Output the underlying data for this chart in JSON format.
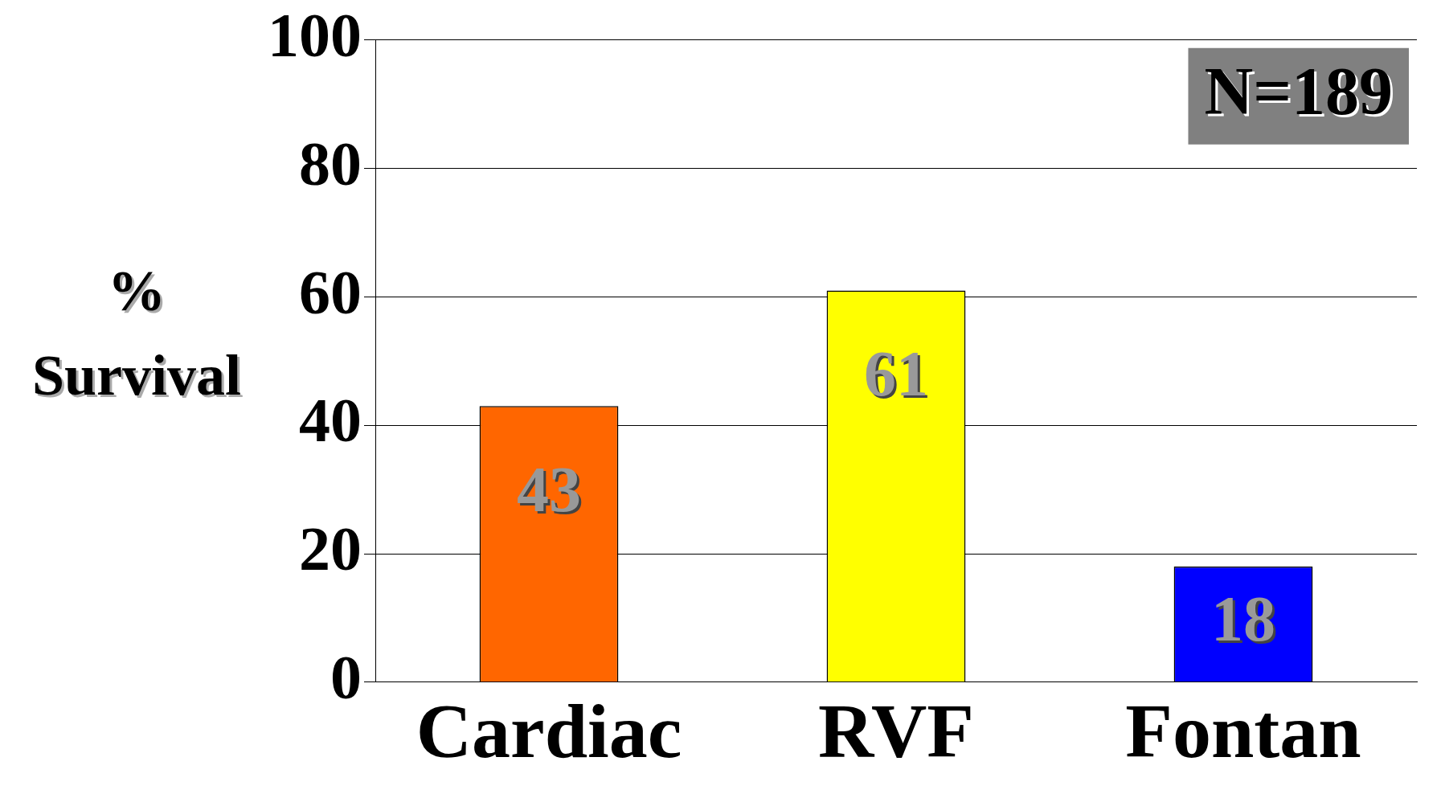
{
  "chart_data": {
    "type": "bar",
    "ylabel": "% Survival",
    "categories": [
      "Cardiac",
      "RVF",
      "Fontan"
    ],
    "values": [
      43,
      61,
      18
    ],
    "colors": [
      "#ff6600",
      "#ffff00",
      "#0000ff"
    ],
    "ylim": [
      0,
      100
    ],
    "yticks": [
      0,
      20,
      40,
      60,
      80,
      100
    ],
    "grid": "y",
    "data_labels": true,
    "legend": false,
    "annotations": [
      "N=189"
    ]
  }
}
